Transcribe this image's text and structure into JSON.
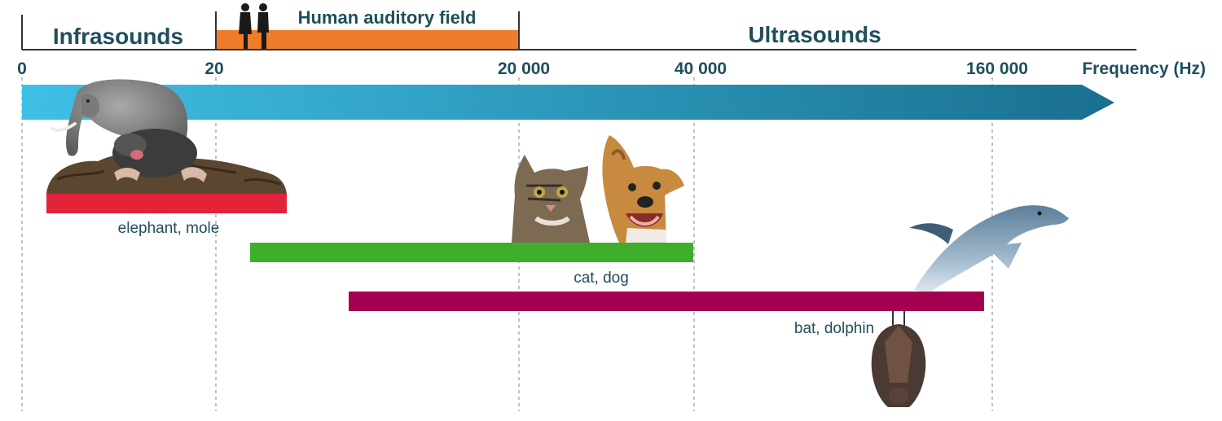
{
  "regions": {
    "infra": "Infrasounds",
    "human": "Human auditory field",
    "ultra": "Ultrasounds"
  },
  "axis": {
    "label": "Frequency (Hz)",
    "ticks": [
      {
        "label": "0"
      },
      {
        "label": "20"
      },
      {
        "label": "20 000"
      },
      {
        "label": "40 000"
      },
      {
        "label": "160 000"
      }
    ]
  },
  "ranges": [
    {
      "label": "elephant, mole",
      "color": "#e2233a"
    },
    {
      "label": "cat, dog",
      "color": "#3fae2a"
    },
    {
      "label": "bat, dolphin",
      "color": "#a3004f"
    }
  ],
  "colors": {
    "text": "#1f4e5c",
    "human_band": "#f07b2a",
    "arrow_start": "#3fc0e6",
    "arrow_end": "#1a6f8f"
  }
}
